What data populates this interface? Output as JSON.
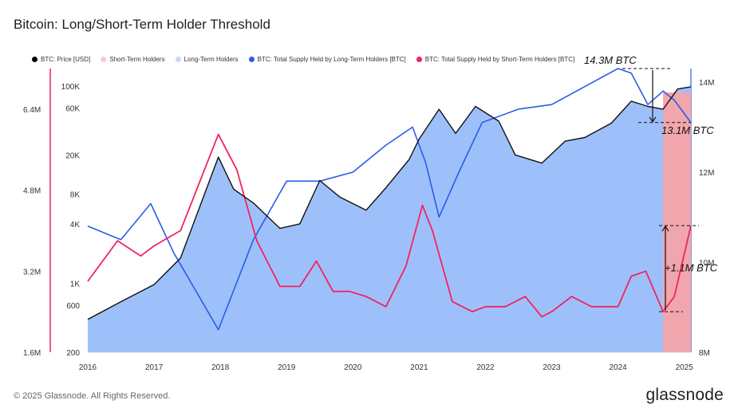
{
  "footer": {
    "copyright": "© 2025 Glassnode. All Rights Reserved.",
    "brand": "glassnode"
  },
  "chart_data": {
    "type": "area",
    "title": "Bitcoin: Long/Short-Term Holder Threshold",
    "legend": [
      {
        "name": "BTC: Price [USD]",
        "color": "#000000"
      },
      {
        "name": "Short-Term Holders",
        "color": "#f9c9d2"
      },
      {
        "name": "Long-Term Holders",
        "color": "#c9d8f7"
      },
      {
        "name": "BTC: Total Supply Held by Long-Term Holders [BTC]",
        "color": "#2a5ce8"
      },
      {
        "name": "BTC: Total Supply Held by Short-Term Holders [BTC]",
        "color": "#f0245f"
      }
    ],
    "x_ticks": [
      "2016",
      "2017",
      "2018",
      "2019",
      "2020",
      "2021",
      "2022",
      "2023",
      "2024",
      "2025"
    ],
    "x_range": [
      2016.0,
      2025.1
    ],
    "stl_axis_left": {
      "ticks": [
        "6.4M",
        "4.8M",
        "3.2M",
        "1.6M"
      ],
      "values": [
        6400000,
        4800000,
        3200000,
        1600000
      ],
      "range": [
        1600000,
        7200000
      ]
    },
    "price_axis_log": {
      "ticks": [
        "100K",
        "60K",
        "20K",
        "8K",
        "4K",
        "1K",
        "600",
        "200"
      ],
      "values": [
        100000,
        60000,
        20000,
        8000,
        4000,
        1000,
        600,
        200
      ],
      "range": [
        200,
        150000
      ]
    },
    "lth_axis_right": {
      "ticks": [
        "14M",
        "12M",
        "10M",
        "8M"
      ],
      "values": [
        14000000,
        12000000,
        10000000,
        8000000
      ],
      "range": [
        8000000,
        14300000
      ]
    },
    "short_term_holder_shading": {
      "from": 2024.68,
      "to": 2025.1
    },
    "series": [
      {
        "name": "BTC: Price [USD]",
        "axis": "price",
        "x": [
          2016.0,
          2016.5,
          2017.0,
          2017.4,
          2017.97,
          2018.2,
          2018.5,
          2018.9,
          2019.2,
          2019.5,
          2019.8,
          2020.2,
          2020.5,
          2020.85,
          2021.0,
          2021.3,
          2021.55,
          2021.85,
          2022.2,
          2022.45,
          2022.85,
          2023.2,
          2023.5,
          2023.9,
          2024.2,
          2024.45,
          2024.68,
          2024.9,
          2025.1
        ],
        "values": [
          430,
          650,
          970,
          1800,
          19000,
          9000,
          6500,
          3600,
          4000,
          11000,
          7500,
          5500,
          9300,
          18000,
          29000,
          58000,
          33000,
          62000,
          44000,
          20000,
          16500,
          27500,
          30000,
          42000,
          70000,
          62000,
          58000,
          93000,
          98000
        ]
      },
      {
        "name": "BTC: Total Supply Held by Long-Term Holders [BTC]",
        "axis": "lth",
        "x": [
          2016.0,
          2016.5,
          2016.95,
          2017.3,
          2017.97,
          2018.5,
          2019.0,
          2019.5,
          2020.0,
          2020.5,
          2020.9,
          2021.1,
          2021.3,
          2021.6,
          2021.95,
          2022.5,
          2023.0,
          2023.5,
          2024.0,
          2024.2,
          2024.45,
          2024.68,
          2024.85,
          2025.1
        ],
        "values": [
          10800000,
          10500000,
          11300000,
          10200000,
          8500000,
          10500000,
          11800000,
          11800000,
          12000000,
          12600000,
          13000000,
          12200000,
          11000000,
          12000000,
          13100000,
          13400000,
          13500000,
          13900000,
          14300000,
          14200000,
          13500000,
          13800000,
          13600000,
          13100000
        ]
      },
      {
        "name": "BTC: Total Supply Held by Short-Term Holders [BTC]",
        "axis": "stl",
        "x": [
          2016.0,
          2016.45,
          2016.8,
          2017.0,
          2017.4,
          2017.97,
          2018.25,
          2018.55,
          2018.9,
          2019.2,
          2019.45,
          2019.7,
          2019.95,
          2020.2,
          2020.5,
          2020.8,
          2021.05,
          2021.2,
          2021.5,
          2021.8,
          2022.0,
          2022.3,
          2022.6,
          2022.85,
          2023.0,
          2023.3,
          2023.6,
          2024.0,
          2024.2,
          2024.42,
          2024.68,
          2024.85,
          2025.1
        ],
        "values": [
          3000000,
          3800000,
          3500000,
          3700000,
          4000000,
          5900000,
          5200000,
          3800000,
          2900000,
          2900000,
          3400000,
          2800000,
          2800000,
          2700000,
          2500000,
          3300000,
          4500000,
          4000000,
          2600000,
          2400000,
          2500000,
          2500000,
          2700000,
          2300000,
          2400000,
          2700000,
          2500000,
          2500000,
          3100000,
          3200000,
          2400000,
          2700000,
          4100000
        ]
      }
    ],
    "annotations": [
      {
        "text": "14.3M BTC",
        "x": 2024.1,
        "value": 14300000,
        "axis": "lth"
      },
      {
        "text": "13.1M BTC",
        "x": 2024.9,
        "value": 13100000,
        "axis": "lth"
      },
      {
        "text": "+1.1M BTC",
        "x": 2024.95,
        "value": 3200000,
        "axis": "stl"
      }
    ]
  }
}
